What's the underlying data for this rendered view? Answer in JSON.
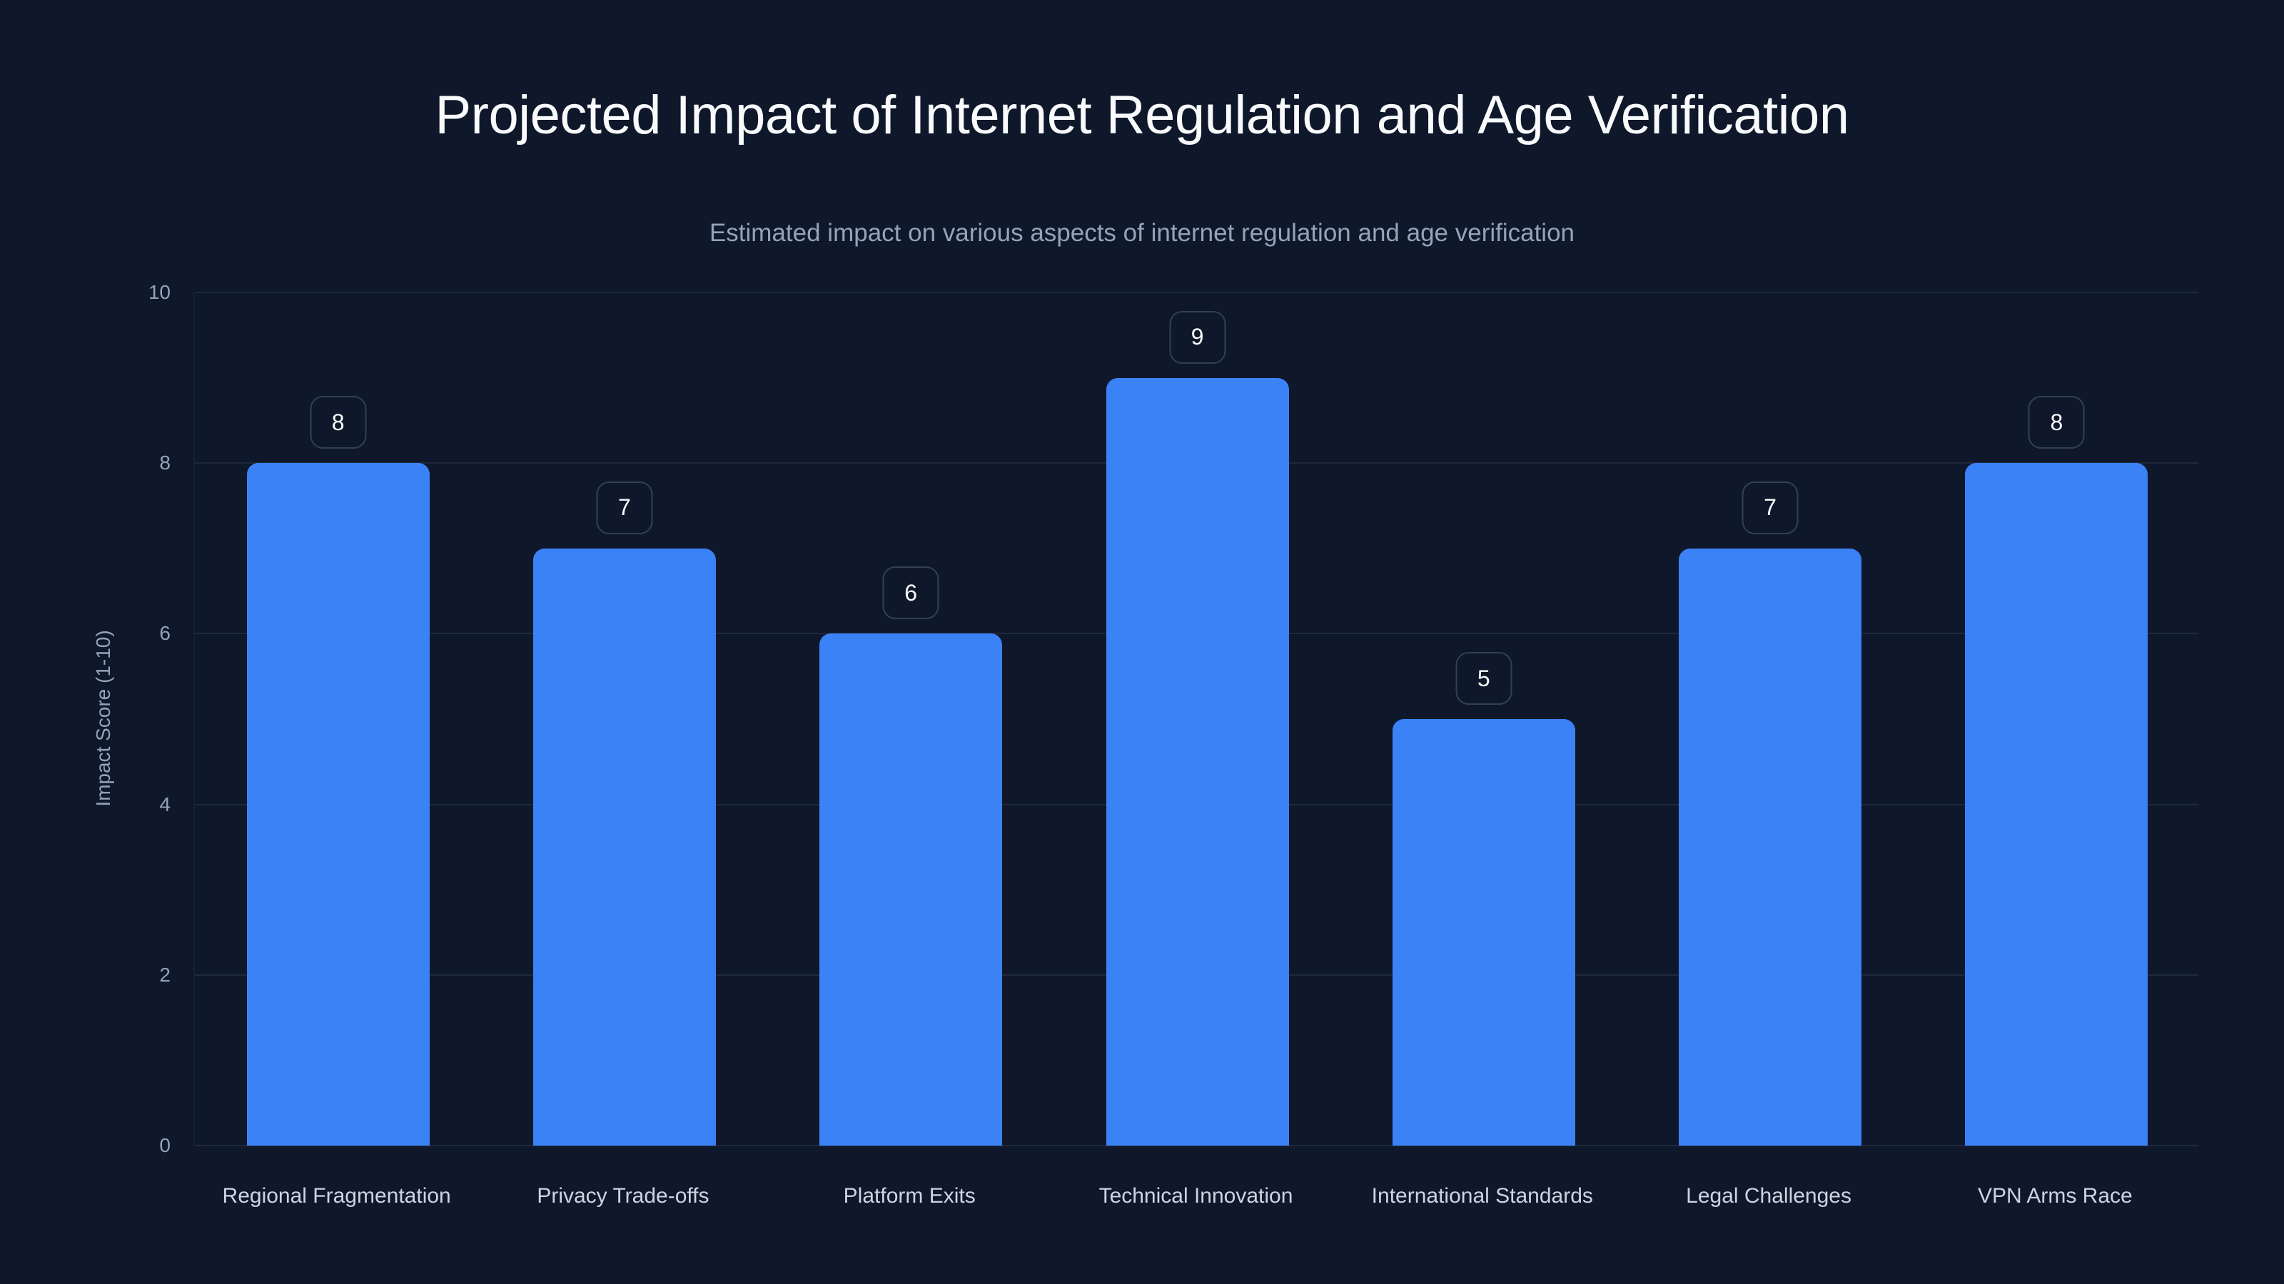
{
  "chart_data": {
    "type": "bar",
    "title": "Projected Impact of Internet Regulation and Age Verification",
    "subtitle": "Estimated impact on various aspects of internet regulation and age verification",
    "xlabel": "",
    "ylabel": "Impact Score (1-10)",
    "ylim": [
      0,
      10
    ],
    "yticks": [
      0,
      2,
      4,
      6,
      8,
      10
    ],
    "grid": true,
    "legend": null,
    "categories": [
      "Regional Fragmentation",
      "Privacy Trade-offs",
      "Platform Exits",
      "Technical Innovation",
      "International Standards",
      "Legal Challenges",
      "VPN Arms Race"
    ],
    "values": [
      8,
      7,
      6,
      9,
      5,
      7,
      8
    ],
    "data_labels": [
      "8",
      "7",
      "6",
      "9",
      "5",
      "7",
      "8"
    ],
    "colors": {
      "background": "#0f172a",
      "bar": "#3b82f6",
      "grid": "#1e293b",
      "title": "#f8fafc",
      "subtitle": "#94a3b8",
      "tick": "#94a3b8",
      "category_label": "#cbd5e1",
      "value_box_border": "#334155"
    }
  }
}
